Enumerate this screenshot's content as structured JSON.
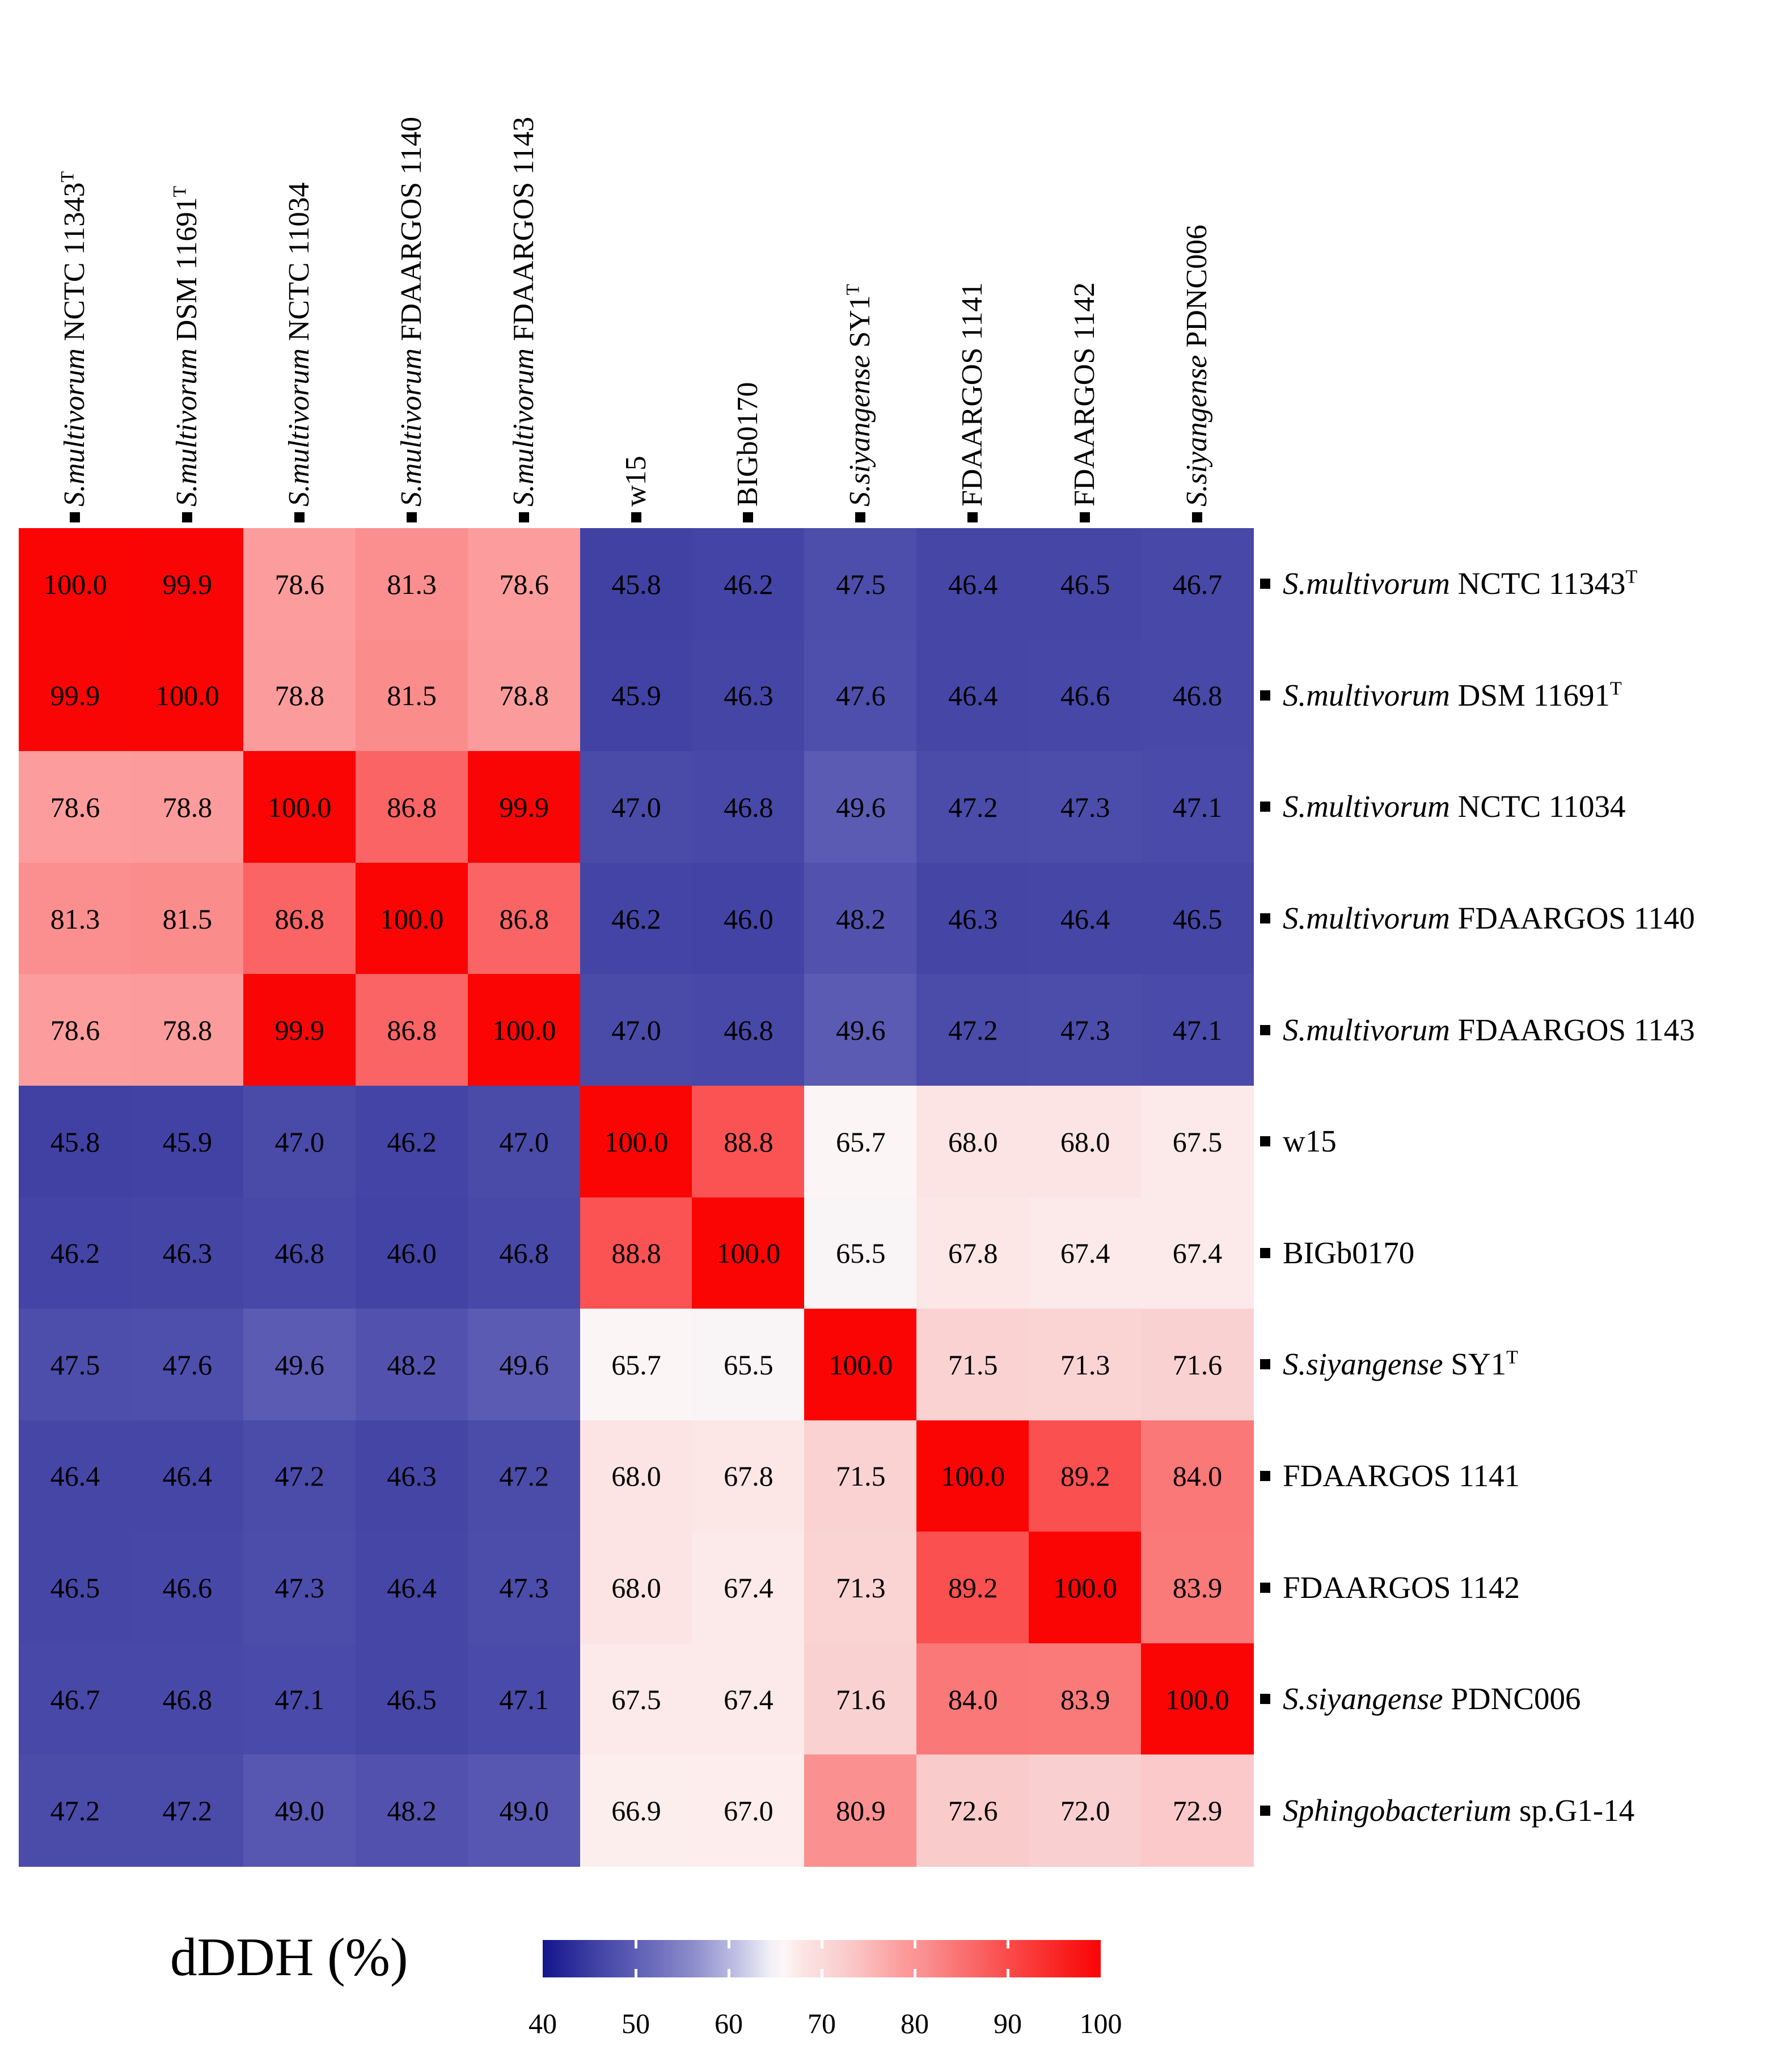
{
  "chart_data": {
    "type": "heatmap",
    "title": "",
    "colorbar": {
      "label": "dDDH (%)",
      "min": 40,
      "max": 100,
      "ticks": [
        40,
        50,
        60,
        70,
        80,
        90,
        100
      ],
      "notch_values": [
        50,
        60,
        70,
        80,
        90
      ]
    },
    "colormap_stops": [
      [
        40,
        "#15158F"
      ],
      [
        46,
        "#4343A5"
      ],
      [
        50,
        "#5E5EB6"
      ],
      [
        56,
        "#8A8ACB"
      ],
      [
        61,
        "#C2C2E5"
      ],
      [
        64.5,
        "#F2F0F7"
      ],
      [
        66,
        "#FDF6F6"
      ],
      [
        68,
        "#FCE4E4"
      ],
      [
        71.5,
        "#FAD2D2"
      ],
      [
        74,
        "#FBC2C2"
      ],
      [
        78.6,
        "#FC9C9C"
      ],
      [
        81.3,
        "#FB8E8E"
      ],
      [
        84,
        "#FA7878"
      ],
      [
        86.8,
        "#FA6464"
      ],
      [
        89.2,
        "#FB5050"
      ],
      [
        100,
        "#FA0404"
      ]
    ],
    "columns": [
      {
        "italic": "S.multivorum",
        "text": " NCTC 11343",
        "sup": "T"
      },
      {
        "italic": "S.multivorum",
        "text": " DSM 11691",
        "sup": "T"
      },
      {
        "italic": "S.multivorum",
        "text": " NCTC 11034",
        "sup": ""
      },
      {
        "italic": "S.multivorum",
        "text": " FDAARGOS 1140",
        "sup": ""
      },
      {
        "italic": "S.multivorum",
        "text": " FDAARGOS 1143",
        "sup": ""
      },
      {
        "italic": "",
        "text": "w15",
        "sup": ""
      },
      {
        "italic": "",
        "text": "BIGb0170",
        "sup": ""
      },
      {
        "italic": "S.siyangense",
        "text": " SY1",
        "sup": "T"
      },
      {
        "italic": "",
        "text": "FDAARGOS 1141",
        "sup": ""
      },
      {
        "italic": "",
        "text": "FDAARGOS 1142",
        "sup": ""
      },
      {
        "italic": "S.siyangense",
        "text": " PDNC006",
        "sup": ""
      }
    ],
    "rows": [
      {
        "italic": "S.multivorum",
        "text": " NCTC 11343",
        "sup": "T"
      },
      {
        "italic": "S.multivorum",
        "text": " DSM 11691",
        "sup": "T"
      },
      {
        "italic": "S.multivorum",
        "text": " NCTC 11034",
        "sup": ""
      },
      {
        "italic": "S.multivorum",
        "text": " FDAARGOS 1140",
        "sup": ""
      },
      {
        "italic": "S.multivorum",
        "text": " FDAARGOS 1143",
        "sup": ""
      },
      {
        "italic": "",
        "text": "w15",
        "sup": ""
      },
      {
        "italic": "",
        "text": "BIGb0170",
        "sup": ""
      },
      {
        "italic": "S.siyangense",
        "text": " SY1",
        "sup": "T"
      },
      {
        "italic": "",
        "text": "FDAARGOS 1141",
        "sup": ""
      },
      {
        "italic": "",
        "text": "FDAARGOS 1142",
        "sup": ""
      },
      {
        "italic": "S.siyangense",
        "text": " PDNC006",
        "sup": ""
      },
      {
        "italic": "Sphingobacterium",
        "text": " sp.G1-14",
        "sup": ""
      }
    ],
    "values": [
      [
        100.0,
        99.9,
        78.6,
        81.3,
        78.6,
        45.8,
        46.2,
        47.5,
        46.4,
        46.5,
        46.7
      ],
      [
        99.9,
        100.0,
        78.8,
        81.5,
        78.8,
        45.9,
        46.3,
        47.6,
        46.4,
        46.6,
        46.8
      ],
      [
        78.6,
        78.8,
        100.0,
        86.8,
        99.9,
        47.0,
        46.8,
        49.6,
        47.2,
        47.3,
        47.1
      ],
      [
        81.3,
        81.5,
        86.8,
        100.0,
        86.8,
        46.2,
        46.0,
        48.2,
        46.3,
        46.4,
        46.5
      ],
      [
        78.6,
        78.8,
        99.9,
        86.8,
        100.0,
        47.0,
        46.8,
        49.6,
        47.2,
        47.3,
        47.1
      ],
      [
        45.8,
        45.9,
        47.0,
        46.2,
        47.0,
        100.0,
        88.8,
        65.7,
        68.0,
        68.0,
        67.5
      ],
      [
        46.2,
        46.3,
        46.8,
        46.0,
        46.8,
        88.8,
        100.0,
        65.5,
        67.8,
        67.4,
        67.4
      ],
      [
        47.5,
        47.6,
        49.6,
        48.2,
        49.6,
        65.7,
        65.5,
        100.0,
        71.5,
        71.3,
        71.6
      ],
      [
        46.4,
        46.4,
        47.2,
        46.3,
        47.2,
        68.0,
        67.8,
        71.5,
        100.0,
        89.2,
        84.0
      ],
      [
        46.5,
        46.6,
        47.3,
        46.4,
        47.3,
        68.0,
        67.4,
        71.3,
        89.2,
        100.0,
        83.9
      ],
      [
        46.7,
        46.8,
        47.1,
        46.5,
        47.1,
        67.5,
        67.4,
        71.6,
        84.0,
        83.9,
        100.0
      ],
      [
        47.2,
        47.2,
        49.0,
        48.2,
        49.0,
        66.9,
        67.0,
        80.9,
        72.6,
        72.0,
        72.9
      ]
    ],
    "value_format": "one_decimal",
    "layout_hints": {
      "grid": "off",
      "legend_position": "bottom",
      "cell_text_color": "#000000"
    }
  }
}
